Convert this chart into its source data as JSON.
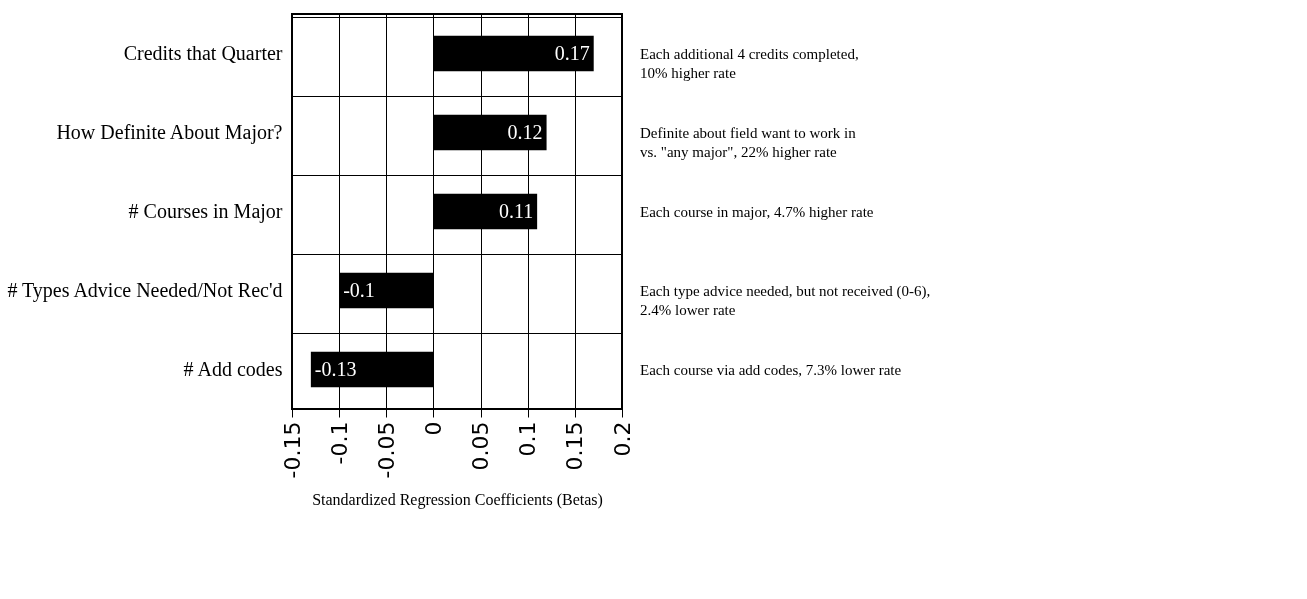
{
  "chart_data": {
    "type": "bar",
    "orientation": "horizontal",
    "xlabel": "Standardized Regression Coefficients (Betas)",
    "categories": [
      "Credits that Quarter",
      "How Definite About Major?",
      "# Courses in Major",
      "# Types Advice Needed/Not Rec'd",
      "# Add codes"
    ],
    "values": [
      0.17,
      0.12,
      0.11,
      -0.1,
      -0.13
    ],
    "color": "#000000",
    "data_labels": true,
    "xlim": [
      -0.15,
      0.2
    ],
    "xticks": [
      -0.15,
      -0.1,
      -0.05,
      0,
      0.05,
      0.1,
      0.15,
      0.2
    ],
    "grid": true,
    "annotations": [
      "Each additional 4  credits completed,\n10% higher rate",
      "Definite about field want to work in\nvs. \"any major\", 22% higher rate",
      "Each course in major, 4.7% higher rate",
      "Each type advice needed, but  not received (0-6),\n2.4% lower rate",
      "Each course via add codes, 7.3% lower rate"
    ]
  }
}
